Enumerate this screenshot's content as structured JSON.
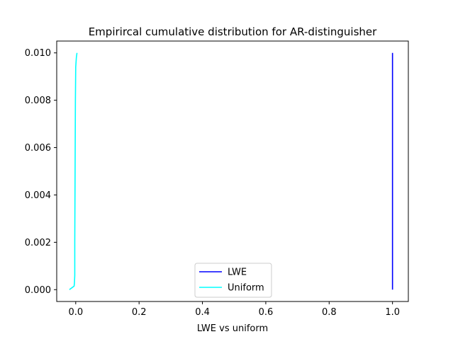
{
  "chart_data": {
    "type": "line",
    "title": "Empirircal cumulative distribution for AR-distinguisher",
    "xlabel": "LWE vs uniform",
    "ylabel": "",
    "xlim": [
      -0.06,
      1.05
    ],
    "ylim": [
      -0.0005,
      0.0105
    ],
    "xticks": [
      0.0,
      0.2,
      0.4,
      0.6,
      0.8,
      1.0
    ],
    "xtick_labels": [
      "0.0",
      "0.2",
      "0.4",
      "0.6",
      "0.8",
      "1.0"
    ],
    "yticks": [
      0.0,
      0.002,
      0.004,
      0.006,
      0.008,
      0.01
    ],
    "ytick_labels": [
      "0.000",
      "0.002",
      "0.004",
      "0.006",
      "0.008",
      "0.010"
    ],
    "grid": false,
    "legend_position": "bottom-center",
    "series": [
      {
        "name": "LWE",
        "color": "#0000ff",
        "x": [
          1.0,
          1.0
        ],
        "y": [
          0.0,
          0.01
        ]
      },
      {
        "name": "Uniform",
        "color": "#00ffff",
        "x": [
          -0.02,
          -0.01,
          -0.005,
          -0.004,
          -0.003,
          -0.003,
          -0.002,
          -0.001,
          0.0,
          0.002,
          0.004
        ],
        "y": [
          0.0,
          0.0001,
          0.00015,
          0.0003,
          0.0006,
          0.002,
          0.005,
          0.008,
          0.0094,
          0.0098,
          0.01
        ]
      }
    ]
  }
}
